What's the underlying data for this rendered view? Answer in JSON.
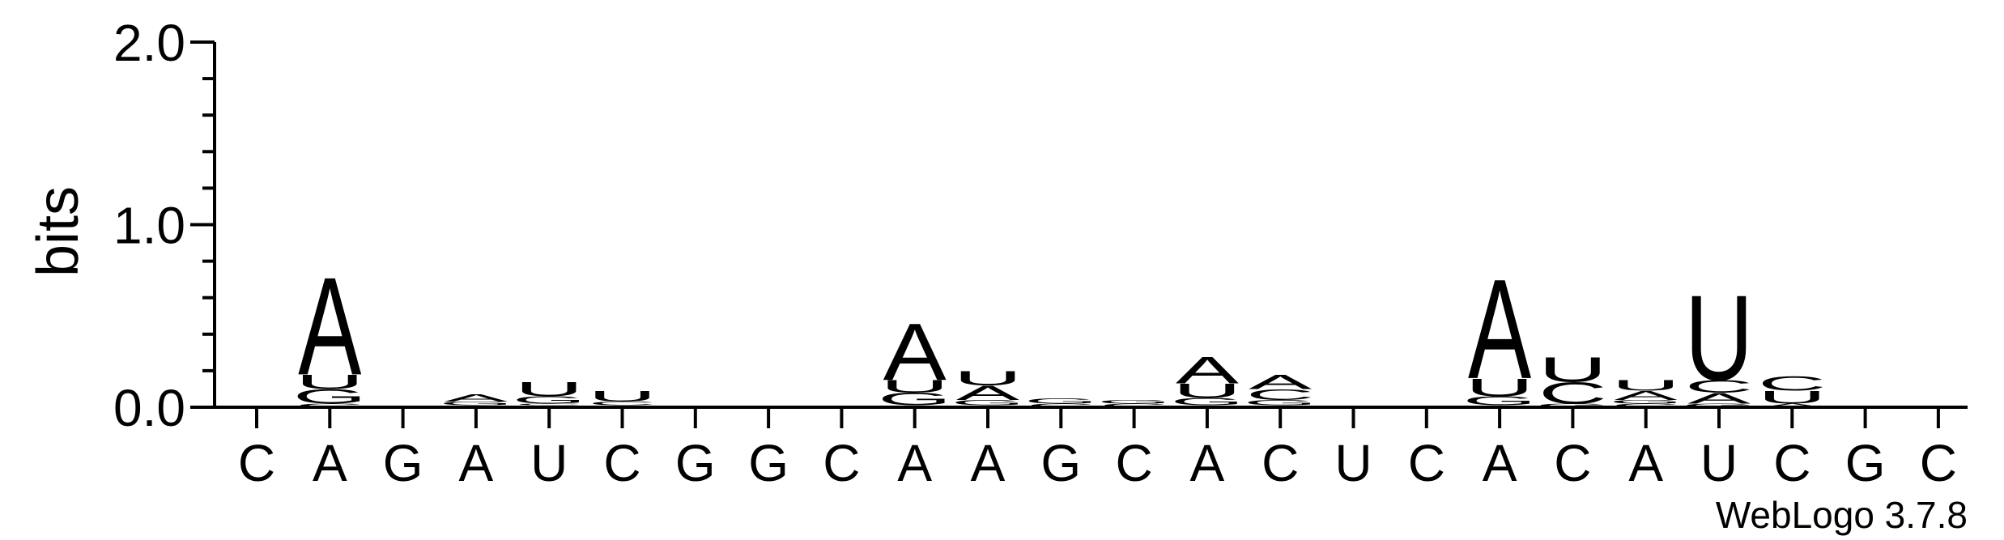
{
  "chart_data": {
    "type": "logo",
    "ylabel": "bits",
    "credit": "WebLogo 3.7.8",
    "categories": [
      "C",
      "A",
      "G",
      "A",
      "U",
      "C",
      "G",
      "G",
      "C",
      "A",
      "A",
      "G",
      "C",
      "A",
      "C",
      "U",
      "C",
      "A",
      "C",
      "A",
      "U",
      "C",
      "G",
      "C"
    ],
    "ylim": [
      0,
      2
    ],
    "yticks": [
      {
        "value": 0,
        "label": "0.0"
      },
      {
        "value": 1,
        "label": "1.0"
      },
      {
        "value": 2,
        "label": "2.0"
      }
    ],
    "minor_yticks": [
      0.2,
      0.4,
      0.6,
      0.8,
      1.2,
      1.4,
      1.6,
      1.8
    ],
    "series": [
      {
        "name": "A",
        "color": "#ff8c00",
        "values": [
          0,
          0.55,
          0,
          0.04,
          0.01,
          0.01,
          0,
          0,
          0,
          0.32,
          0.08,
          0,
          0,
          0.15,
          0.08,
          0,
          0,
          0.56,
          0,
          0.05,
          0.06,
          0.02,
          0,
          0
        ]
      },
      {
        "name": "C",
        "color": "#0000ff",
        "values": [
          0.01,
          0.02,
          0,
          0.01,
          0.01,
          0.02,
          0,
          0,
          0,
          0.01,
          0.01,
          0.02,
          0.02,
          0.01,
          0.06,
          0,
          0,
          0.01,
          0.12,
          0.02,
          0.07,
          0.08,
          0,
          0
        ]
      },
      {
        "name": "G",
        "color": "#0000ff",
        "values": [
          0,
          0.08,
          0,
          0.02,
          0.04,
          0,
          0.01,
          0,
          0,
          0.07,
          0.03,
          0.03,
          0.02,
          0.04,
          0.03,
          0,
          0,
          0.05,
          0.02,
          0.02,
          0.02,
          0,
          0,
          0
        ]
      },
      {
        "name": "U",
        "color": "#ff8c00",
        "values": [
          0,
          0.08,
          0,
          0,
          0.08,
          0.06,
          0,
          0,
          0,
          0.07,
          0.08,
          0,
          0,
          0.08,
          0.01,
          0.01,
          0,
          0.1,
          0.14,
          0.06,
          0.48,
          0.07,
          0,
          0.01
        ]
      }
    ]
  }
}
